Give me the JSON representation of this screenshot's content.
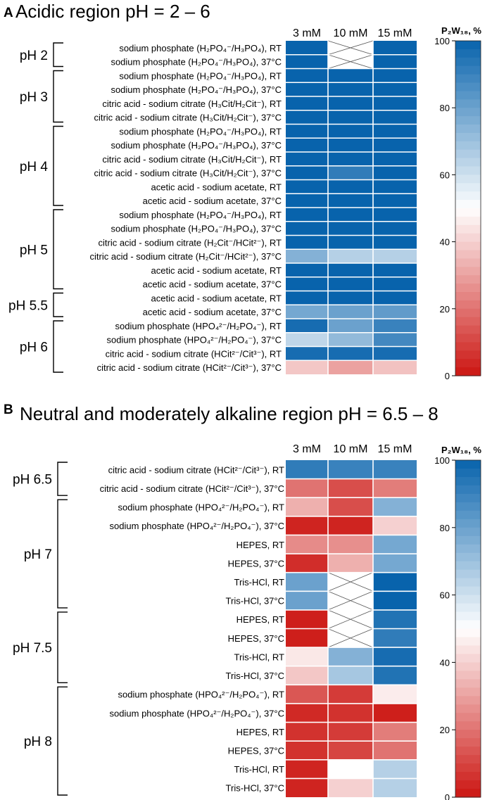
{
  "chart_data": [
    {
      "type": "heatmap",
      "panel": "A",
      "title": "Acidic region pH = 2 – 6",
      "columns": [
        "3 mM",
        "10 mM",
        "15 mM"
      ],
      "colorbar": {
        "title": "P₂W₁₈, %",
        "range": [
          0,
          100
        ],
        "ticks": [
          "0",
          "20",
          "40",
          "60",
          "80",
          "100"
        ]
      },
      "groups": [
        {
          "label": "pH 2",
          "start": 0,
          "end": 1
        },
        {
          "label": "pH 3",
          "start": 2,
          "end": 5
        },
        {
          "label": "pH 4",
          "start": 6,
          "end": 11
        },
        {
          "label": "pH 5",
          "start": 12,
          "end": 17
        },
        {
          "label": "pH 5.5",
          "start": 18,
          "end": 19
        },
        {
          "label": "pH 6",
          "start": 20,
          "end": 23
        }
      ],
      "rows": [
        {
          "label": "sodium phosphate (H₂PO₄⁻/H₃PO₄), RT",
          "values": [
            100,
            null,
            100
          ]
        },
        {
          "label": "sodium phosphate (H₂PO₄⁻/H₃PO₄), 37°C",
          "values": [
            100,
            null,
            100
          ]
        },
        {
          "label": "sodium phosphate (H₂PO₄⁻/H₃PO₄), RT",
          "values": [
            100,
            100,
            100
          ]
        },
        {
          "label": "sodium phosphate (H₂PO₄⁻/H₃PO₄), 37°C",
          "values": [
            100,
            100,
            100
          ]
        },
        {
          "label": "citric acid - sodium citrate (H₃Cit/H₂Cit⁻), RT",
          "values": [
            100,
            100,
            100
          ]
        },
        {
          "label": "citric acid - sodium citrate (H₃Cit/H₂Cit⁻), 37°C",
          "values": [
            100,
            100,
            100
          ]
        },
        {
          "label": "sodium phosphate (H₂PO₄⁻/H₃PO₄), RT",
          "values": [
            100,
            100,
            100
          ]
        },
        {
          "label": "sodium phosphate (H₂PO₄⁻/H₃PO₄), 37°C",
          "values": [
            100,
            100,
            100
          ]
        },
        {
          "label": "citric acid - sodium citrate (H₃Cit/H₂Cit⁻), RT",
          "values": [
            100,
            100,
            100
          ]
        },
        {
          "label": "citric acid - sodium citrate (H₃Cit/H₂Cit⁻), 37°C",
          "values": [
            100,
            92,
            100
          ]
        },
        {
          "label": "acetic acid - sodium acetate, RT",
          "values": [
            100,
            100,
            100
          ]
        },
        {
          "label": "acetic acid - sodium acetate, 37°C",
          "values": [
            100,
            100,
            100
          ]
        },
        {
          "label": "sodium phosphate (H₂PO₄⁻/H₃PO₄), RT",
          "values": [
            100,
            100,
            100
          ]
        },
        {
          "label": "sodium phosphate (H₂PO₄⁻/H₃PO₄), 37°C",
          "values": [
            100,
            100,
            100
          ]
        },
        {
          "label": "citric acid - sodium citrate (H₂Cit⁻/HCit²⁻), RT",
          "values": [
            100,
            100,
            100
          ]
        },
        {
          "label": "citric acid - sodium citrate (H₂Cit⁻/HCit²⁻), 37°C",
          "values": [
            75,
            65,
            65
          ]
        },
        {
          "label": "acetic acid - sodium acetate, RT",
          "values": [
            100,
            100,
            100
          ]
        },
        {
          "label": "acetic acid - sodium acetate, 37°C",
          "values": [
            100,
            100,
            100
          ]
        },
        {
          "label": "acetic acid - sodium acetate, RT",
          "values": [
            100,
            100,
            100
          ]
        },
        {
          "label": "acetic acid - sodium acetate, 37°C",
          "values": [
            78,
            80,
            82
          ]
        },
        {
          "label": "sodium phosphate (HPO₄²⁻/H₂PO₄⁻), RT",
          "values": [
            97,
            80,
            90
          ]
        },
        {
          "label": "sodium phosphate (HPO₄²⁻/H₂PO₄⁻), 37°C",
          "values": [
            63,
            72,
            88
          ]
        },
        {
          "label": "citric acid - sodium citrate (HCit²⁻/Cit³⁻), RT",
          "values": [
            97,
            97,
            97
          ]
        },
        {
          "label": "citric acid - sodium citrate (HCit²⁻/Cit³⁻), 37°C",
          "values": [
            38,
            30,
            37
          ]
        }
      ]
    },
    {
      "type": "heatmap",
      "panel": "B",
      "title": "Neutral and moderately alkaline region pH = 6.5 – 8",
      "columns": [
        "3 mM",
        "10 mM",
        "15 mM"
      ],
      "colorbar": {
        "title": "P₂W₁₈, %",
        "range": [
          0,
          100
        ],
        "ticks": [
          "0",
          "20",
          "40",
          "60",
          "80",
          "100"
        ]
      },
      "groups": [
        {
          "label": "pH 6.5",
          "start": 0,
          "end": 1
        },
        {
          "label": "pH 7",
          "start": 2,
          "end": 7
        },
        {
          "label": "pH 7.5",
          "start": 8,
          "end": 11
        },
        {
          "label": "pH 8",
          "start": 12,
          "end": 17
        }
      ],
      "rows": [
        {
          "label": "citric acid - sodium citrate (HCit²⁻/Cit³⁻), RT",
          "values": [
            92,
            90,
            90
          ]
        },
        {
          "label": "citric acid - sodium citrate (HCit²⁻/Cit³⁻), 37°C",
          "values": [
            20,
            12,
            22
          ]
        },
        {
          "label": "sodium phosphate (HPO₄²⁻/H₂PO₄⁻), RT",
          "values": [
            33,
            12,
            75
          ]
        },
        {
          "label": "sodium phosphate (HPO₄²⁻/H₂PO₄⁻), 37°C",
          "values": [
            3,
            3,
            40
          ]
        },
        {
          "label": "HEPES, RT",
          "values": [
            25,
            26,
            78
          ]
        },
        {
          "label": "HEPES, 37°C",
          "values": [
            5,
            33,
            78
          ]
        },
        {
          "label": "Tris-HCl, RT",
          "values": [
            80,
            null,
            100
          ]
        },
        {
          "label": "Tris-HCl, 37°C",
          "values": [
            80,
            null,
            100
          ]
        },
        {
          "label": "HEPES, RT",
          "values": [
            2,
            null,
            95
          ]
        },
        {
          "label": "HEPES, 37°C",
          "values": [
            2,
            null,
            92
          ]
        },
        {
          "label": "Tris-HCl, RT",
          "values": [
            45,
            75,
            97
          ]
        },
        {
          "label": "Tris-HCl, 37°C",
          "values": [
            38,
            68,
            95
          ]
        },
        {
          "label": "sodium phosphate (HPO₄²⁻/H₂PO₄⁻), RT",
          "values": [
            14,
            8,
            46
          ]
        },
        {
          "label": "sodium phosphate (HPO₄²⁻/H₂PO₄⁻), 37°C",
          "values": [
            4,
            6,
            2
          ]
        },
        {
          "label": "HEPES, RT",
          "values": [
            6,
            8,
            22
          ]
        },
        {
          "label": "HEPES, 37°C",
          "values": [
            6,
            10,
            20
          ]
        },
        {
          "label": "Tris-HCl, RT",
          "values": [
            3,
            50,
            65
          ]
        },
        {
          "label": "Tris-HCl, 37°C",
          "values": [
            3,
            40,
            65
          ]
        }
      ]
    }
  ]
}
